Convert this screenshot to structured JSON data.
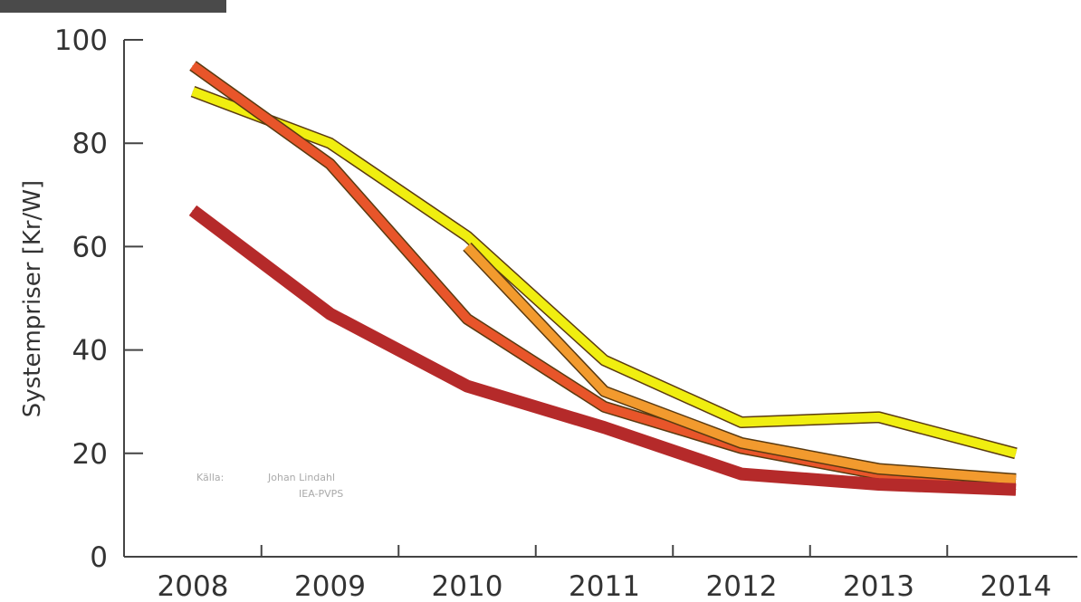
{
  "chart_data": {
    "type": "line",
    "title": "",
    "xlabel": "",
    "ylabel": "Systempriser [Kr/W]",
    "x": [
      "2008",
      "2009",
      "2010",
      "2011",
      "2012",
      "2013",
      "2014"
    ],
    "ylim": [
      0,
      100
    ],
    "yticks": [
      "0",
      "20",
      "40",
      "60",
      "80",
      "100"
    ],
    "grid": false,
    "series": [
      {
        "color": "#f0ee10",
        "values": [
          90,
          80,
          62,
          38,
          26,
          27,
          20
        ]
      },
      {
        "color": "#e8552a",
        "values": [
          95,
          76,
          46,
          29,
          21,
          16,
          15
        ]
      },
      {
        "color": "#f29a2e",
        "values": [
          null,
          null,
          60,
          32,
          22,
          17,
          15
        ]
      },
      {
        "color": "#b52a2a",
        "values": [
          67,
          47,
          33,
          25,
          16,
          14,
          13
        ]
      }
    ],
    "annotations": {
      "source_label": "Källa:",
      "source_line1": "Johan Lindahl",
      "source_line2": "IEA-PVPS"
    }
  }
}
